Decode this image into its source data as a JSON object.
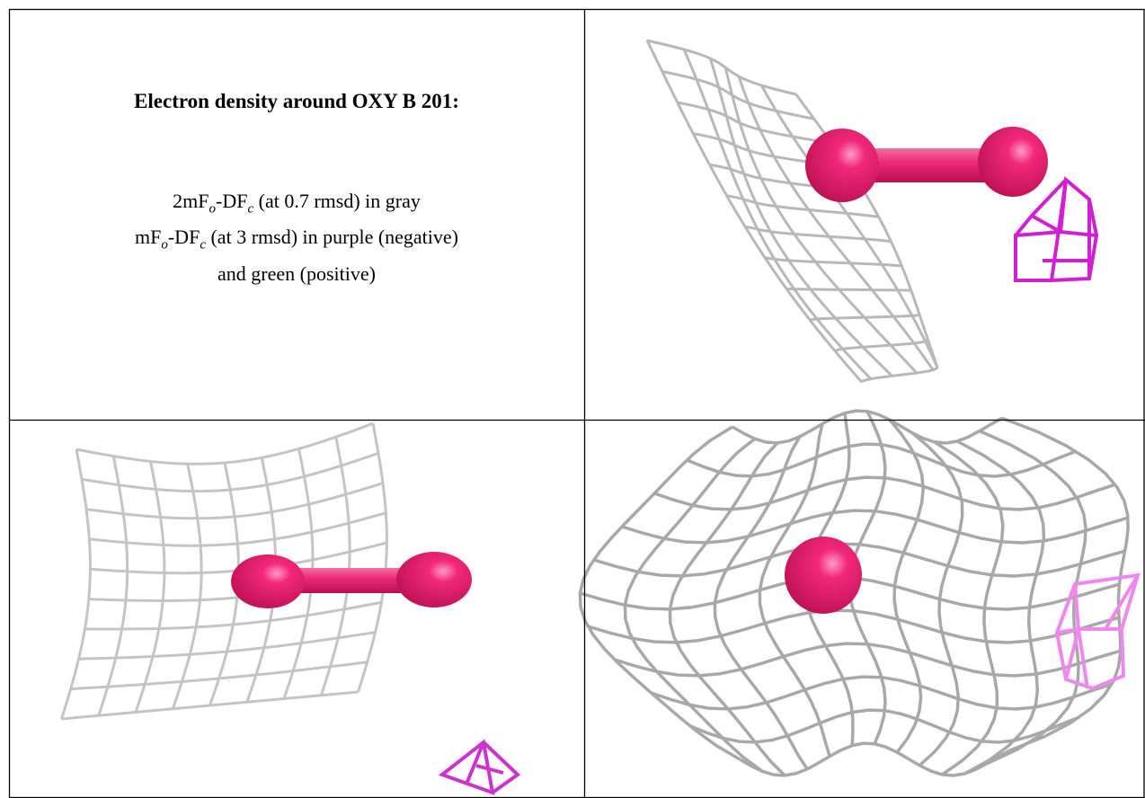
{
  "title": "Electron density around OXY B 201:",
  "legend": [
    [
      "2mF",
      "o",
      "-DF",
      "c",
      " (at 0.7 rmsd) in gray"
    ],
    [
      "mF",
      "o",
      "-DF",
      "c",
      " (at 3 rmsd) in purple (negative)"
    ],
    [
      "and green (positive)"
    ]
  ]
}
